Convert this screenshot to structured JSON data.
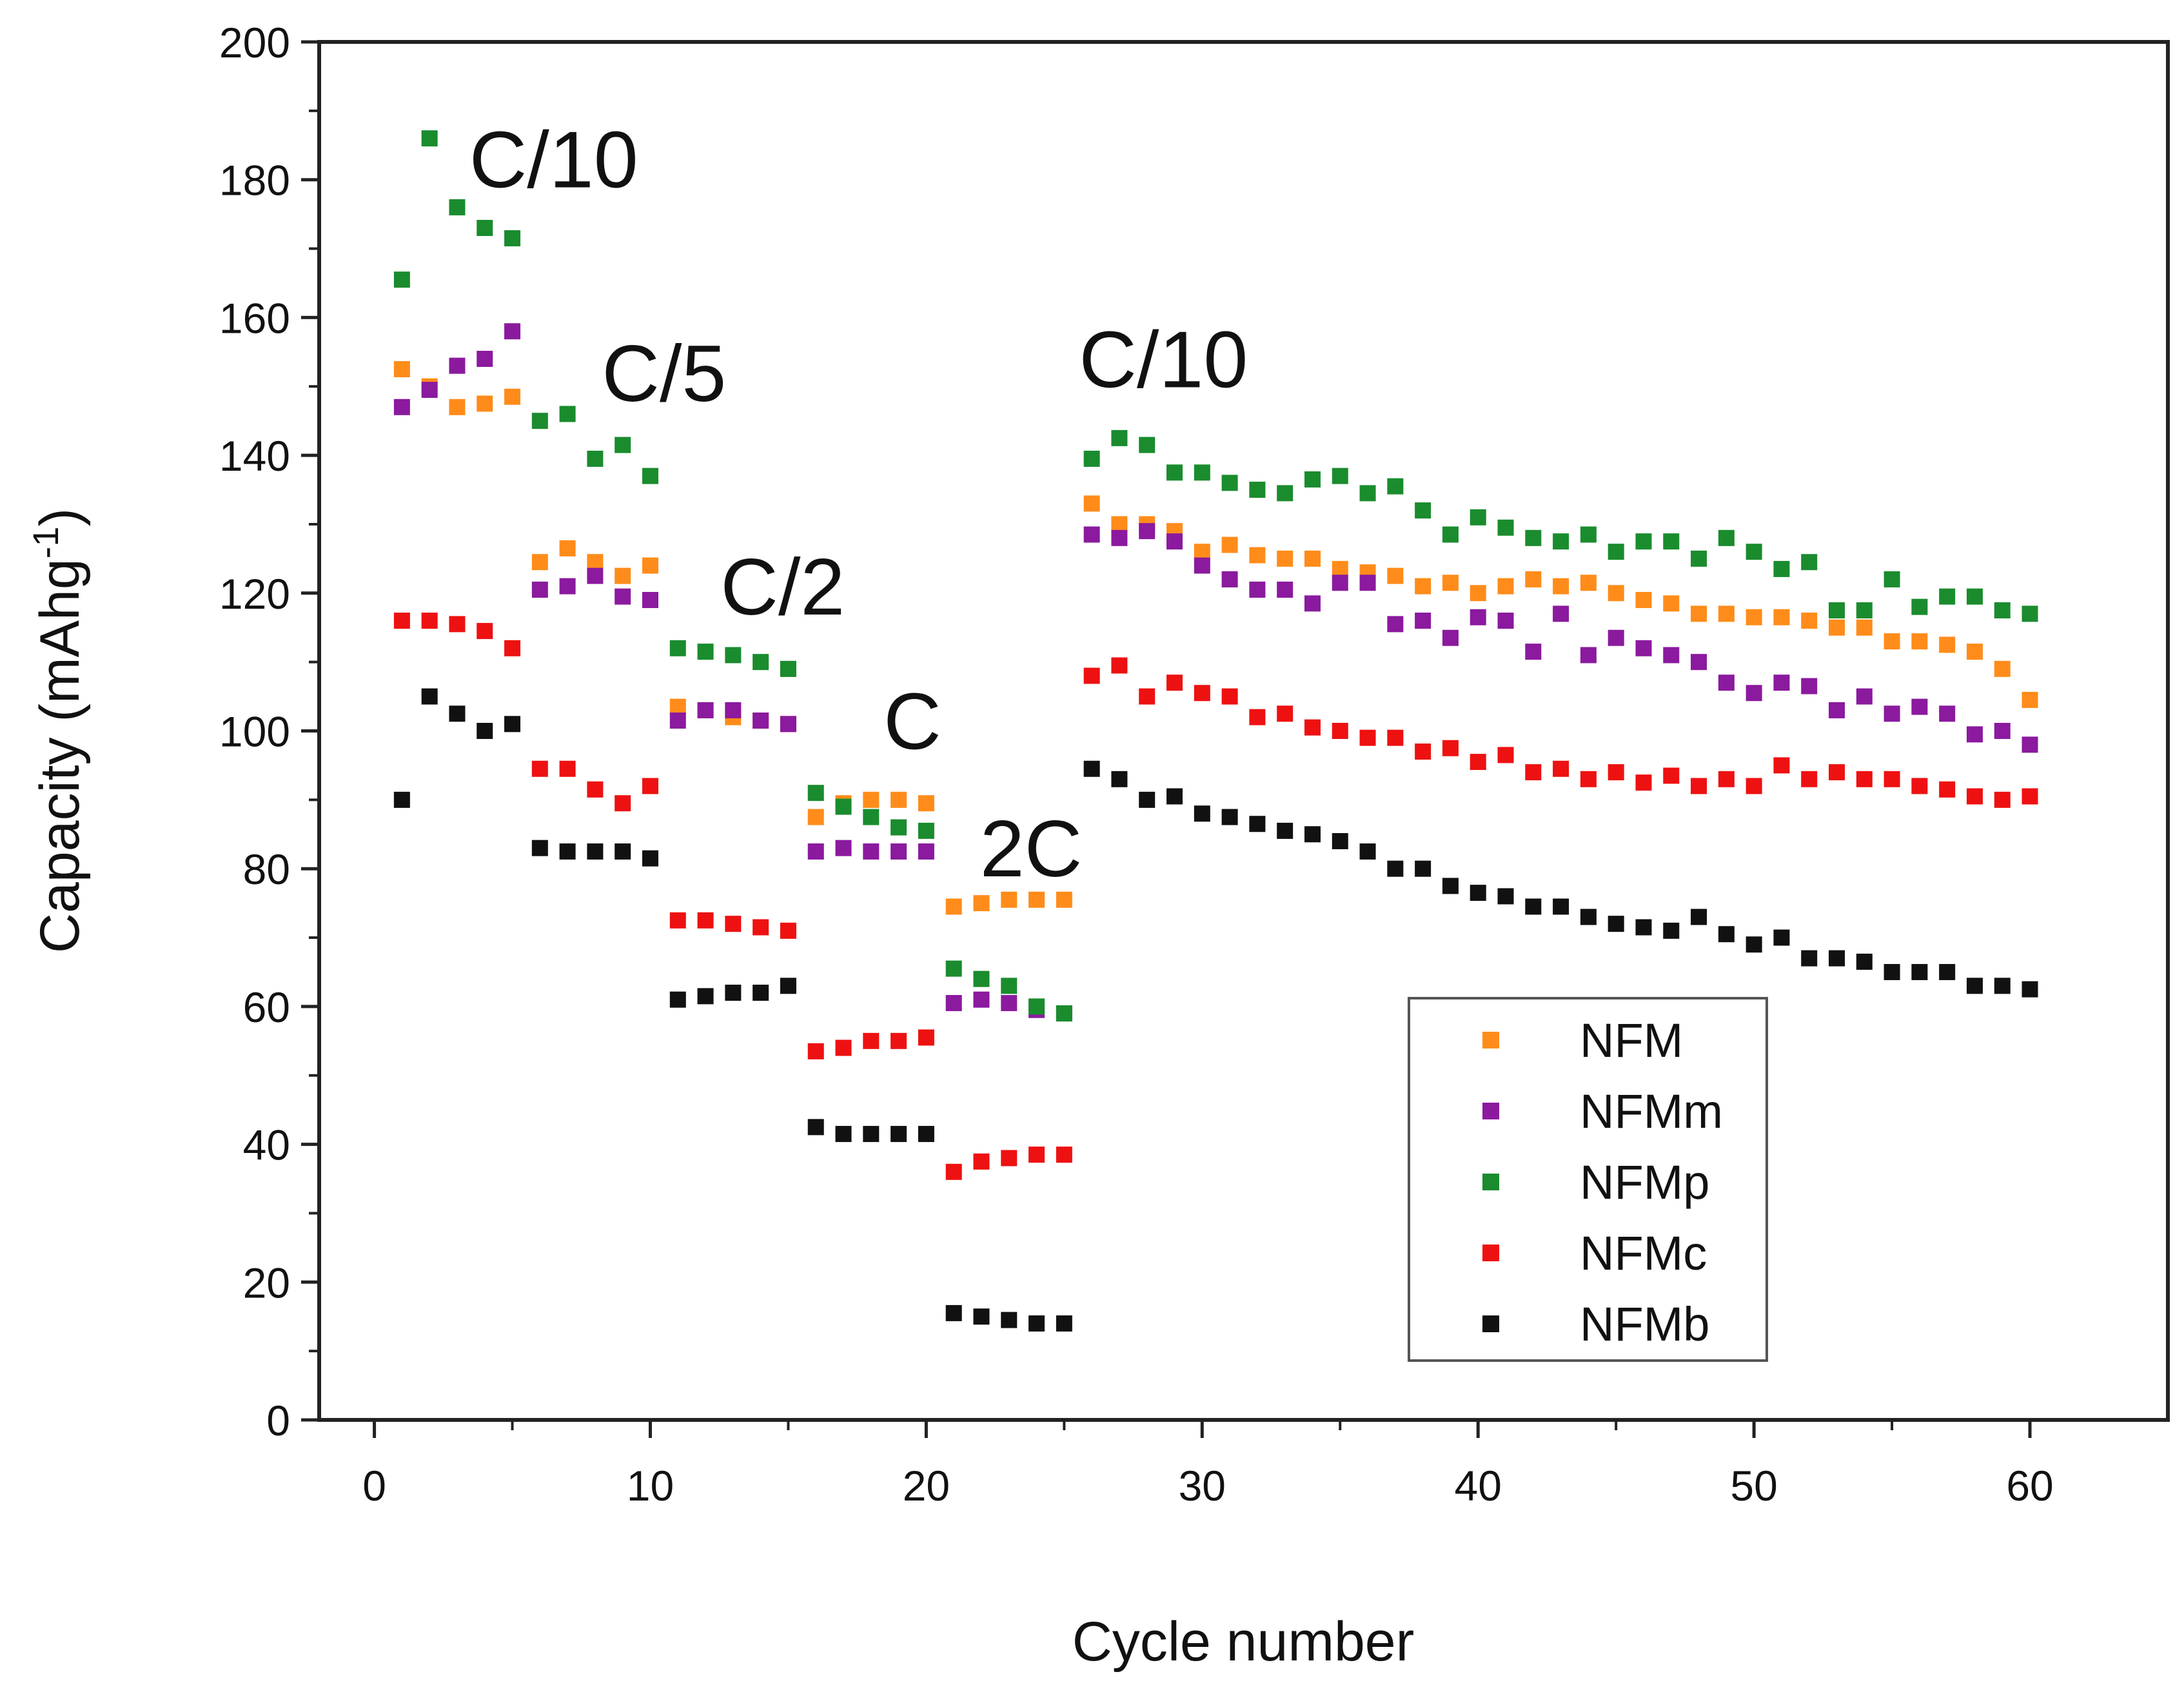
{
  "chart_data": {
    "type": "scatter",
    "title": "",
    "xlabel": "Cycle number",
    "ylabel_main": "Capacity (mAhg",
    "ylabel_sup": "-1",
    "ylabel_close": ")",
    "xlim": [
      -2,
      65
    ],
    "ylim": [
      0,
      200
    ],
    "x_ticks": [
      0,
      10,
      20,
      30,
      40,
      50,
      60
    ],
    "y_ticks": [
      0,
      20,
      40,
      60,
      80,
      100,
      120,
      140,
      160,
      180,
      200
    ],
    "grid": false,
    "legend_position": "bottom-right",
    "x": [
      1,
      2,
      3,
      4,
      5,
      6,
      7,
      8,
      9,
      10,
      11,
      12,
      13,
      14,
      15,
      16,
      17,
      18,
      19,
      20,
      21,
      22,
      23,
      24,
      25,
      26,
      27,
      28,
      29,
      30,
      31,
      32,
      33,
      34,
      35,
      36,
      37,
      38,
      39,
      40,
      41,
      42,
      43,
      44,
      45,
      46,
      47,
      48,
      49,
      50,
      51,
      52,
      53,
      54,
      55,
      56,
      57,
      58,
      59,
      60
    ],
    "series": [
      {
        "name": "NFM",
        "color": "#ff8c1a",
        "values": [
          152.5,
          150,
          147,
          147.5,
          148.5,
          124.5,
          126.5,
          124.5,
          122.5,
          124,
          103.5,
          103,
          102,
          101.5,
          101,
          87.5,
          89.5,
          90,
          90,
          89.5,
          74.5,
          75,
          75.5,
          75.5,
          75.5,
          133,
          130,
          130,
          129,
          126,
          127,
          125.5,
          125,
          125,
          123.5,
          123,
          122.5,
          121,
          121.5,
          120,
          121,
          122,
          121,
          121.5,
          120,
          119,
          118.5,
          117,
          117,
          116.5,
          116.5,
          116,
          115,
          115,
          113,
          113,
          112.5,
          111.5,
          109,
          104.5
        ]
      },
      {
        "name": "NFMm",
        "color": "#8b1a9e",
        "values": [
          147,
          149.5,
          153,
          154,
          158,
          120.5,
          121,
          122.5,
          119.5,
          119,
          101.5,
          103,
          103,
          101.5,
          101,
          82.5,
          83,
          82.5,
          82.5,
          82.5,
          60.5,
          61,
          60.5,
          59.5,
          59,
          128.5,
          128,
          129,
          127.5,
          124,
          122,
          120.5,
          120.5,
          118.5,
          121.5,
          121.5,
          115.5,
          116,
          113.5,
          116.5,
          116,
          111.5,
          117,
          111,
          113.5,
          112,
          111,
          110,
          107,
          105.5,
          107,
          106.5,
          103,
          105,
          102.5,
          103.5,
          102.5,
          99.5,
          100,
          98
        ]
      },
      {
        "name": "NFMp",
        "color": "#1a8c2e",
        "values": [
          165.5,
          186,
          176,
          173,
          171.5,
          145,
          146,
          139.5,
          141.5,
          137,
          112,
          111.5,
          111,
          110,
          109,
          91,
          89,
          87.5,
          86,
          85.5,
          65.5,
          64,
          63,
          60,
          59,
          139.5,
          142.5,
          141.5,
          137.5,
          137.5,
          136,
          135,
          134.5,
          136.5,
          137,
          134.5,
          135.5,
          132,
          128.5,
          131,
          129.5,
          128,
          127.5,
          128.5,
          126,
          127.5,
          127.5,
          125,
          128,
          126,
          123.5,
          124.5,
          117.5,
          117.5,
          122,
          118,
          119.5,
          119.5,
          117.5,
          117
        ]
      },
      {
        "name": "NFMc",
        "color": "#ee1111",
        "values": [
          116,
          116,
          115.5,
          114.5,
          112,
          94.5,
          94.5,
          91.5,
          89.5,
          92,
          72.5,
          72.5,
          72,
          71.5,
          71,
          53.5,
          54,
          55,
          55,
          55.5,
          36,
          37.5,
          38,
          38.5,
          38.5,
          108,
          109.5,
          105,
          107,
          105.5,
          105,
          102,
          102.5,
          100.5,
          100,
          99,
          99,
          97,
          97.5,
          95.5,
          96.5,
          94,
          94.5,
          93,
          94,
          92.5,
          93.5,
          92,
          93,
          92,
          95,
          93,
          94,
          93,
          93,
          92,
          91.5,
          90.5,
          90,
          90.5
        ]
      },
      {
        "name": "NFMb",
        "color": "#111111",
        "values": [
          90,
          105,
          102.5,
          100,
          101,
          83,
          82.5,
          82.5,
          82.5,
          81.5,
          61,
          61.5,
          62,
          62,
          63,
          42.5,
          41.5,
          41.5,
          41.5,
          41.5,
          15.5,
          15,
          14.5,
          14,
          14,
          94.5,
          93,
          90,
          90.5,
          88,
          87.5,
          86.5,
          85.5,
          85,
          84,
          82.5,
          80,
          80,
          77.5,
          76.5,
          76,
          74.5,
          74.5,
          73,
          72,
          71.5,
          71,
          73,
          70.5,
          69,
          70,
          67,
          67,
          66.5,
          65,
          65,
          65,
          63,
          63,
          62.5
        ]
      }
    ],
    "annotations": [
      {
        "text": "C/10",
        "x": 6.5,
        "y": 183
      },
      {
        "text": "C/5",
        "x": 10.5,
        "y": 152
      },
      {
        "text": "C/2",
        "x": 14.8,
        "y": 121
      },
      {
        "text": "C",
        "x": 19.5,
        "y": 101.5
      },
      {
        "text": "2C",
        "x": 23.8,
        "y": 83
      },
      {
        "text": "C/10",
        "x": 28.6,
        "y": 154
      }
    ]
  }
}
